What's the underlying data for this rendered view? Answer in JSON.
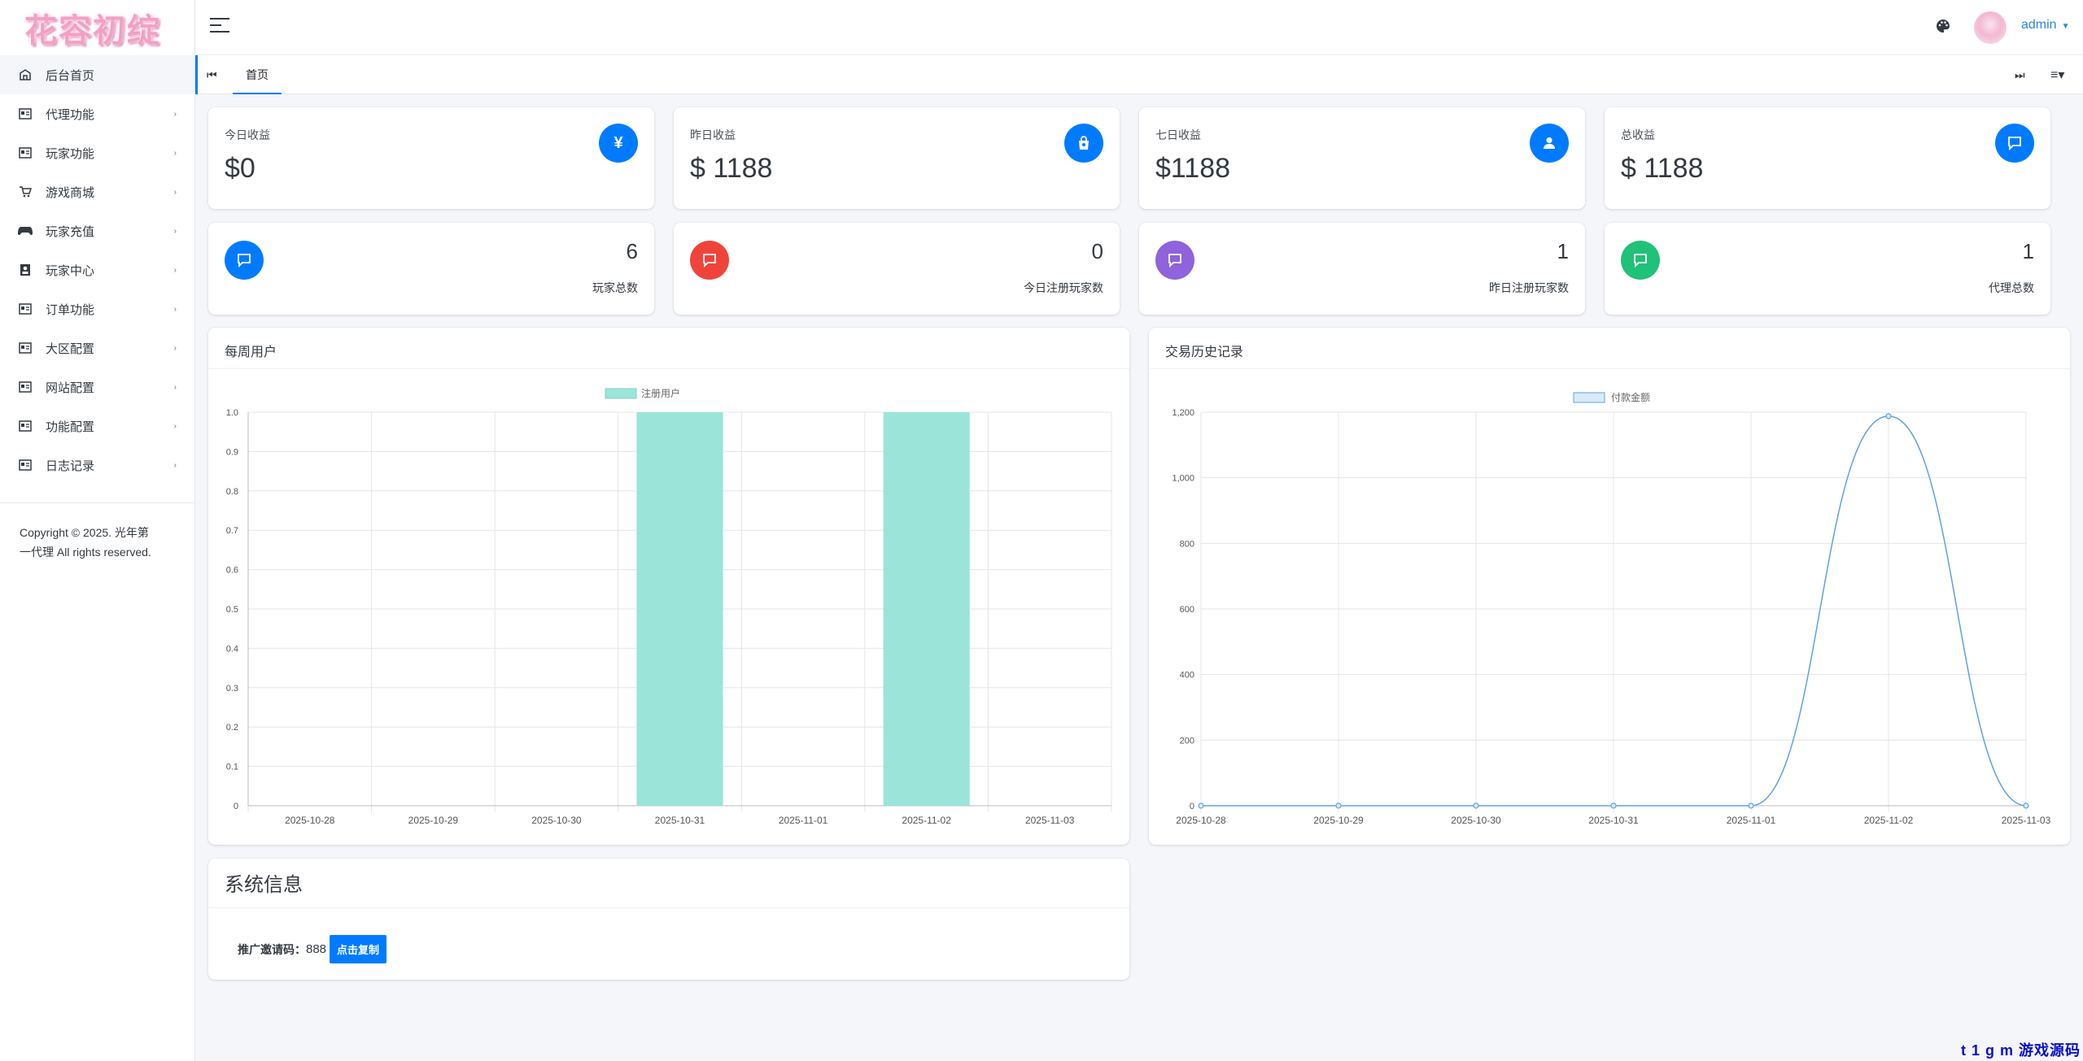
{
  "brand": {
    "logo_text": "花容初绽"
  },
  "sidebar": {
    "items": [
      {
        "label": "后台首页",
        "icon": "home-icon"
      },
      {
        "label": "代理功能",
        "icon": "id-card-icon"
      },
      {
        "label": "玩家功能",
        "icon": "id-card-icon"
      },
      {
        "label": "游戏商城",
        "icon": "cart-icon"
      },
      {
        "label": "玩家充值",
        "icon": "gamepad-icon"
      },
      {
        "label": "玩家中心",
        "icon": "contact-icon"
      },
      {
        "label": "订单功能",
        "icon": "id-card-icon"
      },
      {
        "label": "大区配置",
        "icon": "id-card-icon"
      },
      {
        "label": "网站配置",
        "icon": "id-card-icon"
      },
      {
        "label": "功能配置",
        "icon": "id-card-icon"
      },
      {
        "label": "日志记录",
        "icon": "id-card-icon"
      }
    ],
    "copyright": "Copyright © 2025. 光年第一代理 All rights reserved."
  },
  "header": {
    "user": "admin"
  },
  "tabs": {
    "home": "首页"
  },
  "stats": [
    {
      "label": "今日收益",
      "value": "$0",
      "icon": "yen-icon",
      "color": "#007bff"
    },
    {
      "label": "昨日收益",
      "value": "$ 1188",
      "icon": "bag-icon",
      "color": "#007bff"
    },
    {
      "label": "七日收益",
      "value": "$1188",
      "icon": "user-icon",
      "color": "#007bff"
    },
    {
      "label": "总收益",
      "value": "$ 1188",
      "icon": "message-icon",
      "color": "#007bff"
    }
  ],
  "counts": [
    {
      "label": "玩家总数",
      "value": "6",
      "icon": "message-icon",
      "color": "#007bff"
    },
    {
      "label": "今日注册玩家数",
      "value": "0",
      "icon": "message-icon",
      "color": "#f0443b"
    },
    {
      "label": "昨日注册玩家数",
      "value": "1",
      "icon": "message-icon",
      "color": "#8e63db"
    },
    {
      "label": "代理总数",
      "value": "1",
      "icon": "message-icon",
      "color": "#20c178"
    }
  ],
  "weekly": {
    "title": "每周用户"
  },
  "history": {
    "title": "交易历史记录"
  },
  "chart_data": [
    {
      "type": "bar",
      "categories": [
        "2025-10-28",
        "2025-10-29",
        "2025-10-30",
        "2025-10-31",
        "2025-11-01",
        "2025-11-02",
        "2025-11-03"
      ],
      "series": [
        {
          "name": "注册用户",
          "values": [
            0,
            0,
            0,
            1,
            0,
            1,
            0
          ]
        }
      ],
      "ylim": [
        0,
        1
      ],
      "yticks": [
        "0",
        "0.1",
        "0.2",
        "0.3",
        "0.4",
        "0.5",
        "0.6",
        "0.7",
        "0.8",
        "0.9",
        "1.0"
      ],
      "grid": true,
      "legend": "top-center",
      "color": "#9be4da"
    },
    {
      "type": "line",
      "categories": [
        "2025-10-28",
        "2025-10-29",
        "2025-10-30",
        "2025-10-31",
        "2025-11-01",
        "2025-11-02",
        "2025-11-03"
      ],
      "series": [
        {
          "name": "付款金额",
          "values": [
            0,
            0,
            0,
            0,
            0,
            1188,
            0
          ]
        }
      ],
      "ylim": [
        0,
        1200
      ],
      "yticks": [
        "0",
        "200",
        "400",
        "600",
        "800",
        "1,000",
        "1,200"
      ],
      "grid": true,
      "legend": "top-center",
      "color": "#5fa2dd"
    }
  ],
  "system": {
    "title": "系统信息",
    "invite_label": "推广邀请码：",
    "invite_code": "888",
    "copy_button": "点击复制"
  },
  "watermark": "t 1 g m 游戏源码网"
}
